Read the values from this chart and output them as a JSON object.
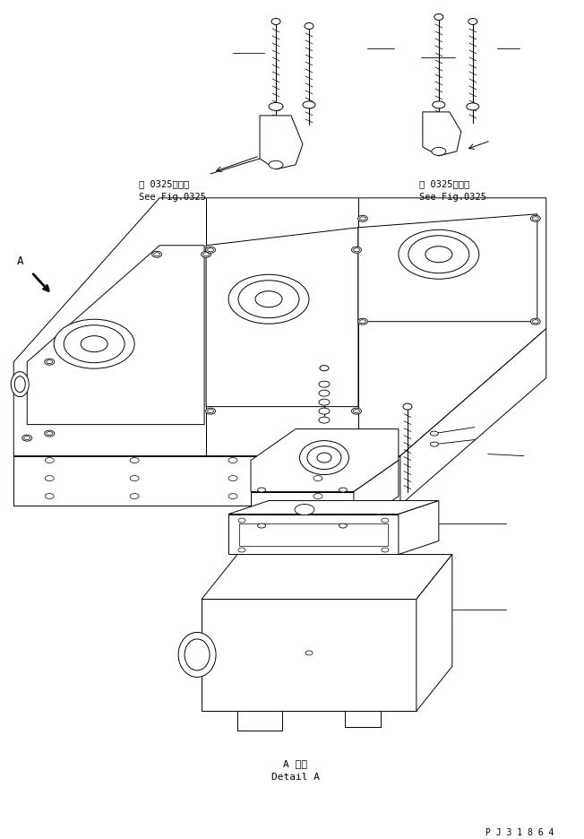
{
  "bg_color": "#ffffff",
  "line_color": "#000000",
  "fig_width": 6.52,
  "fig_height": 9.37,
  "dpi": 100,
  "text_label_left_jp": "第 0325図参照",
  "text_label_left_en": "See Fig.0325",
  "text_label_right_jp": "第 0325図参照",
  "text_label_right_en": "See Fig.0325",
  "text_detail_jp": "A 詳細",
  "text_detail_en": "Detail A",
  "text_partnum": "P J 3 1 8 6 4",
  "text_A": "A"
}
